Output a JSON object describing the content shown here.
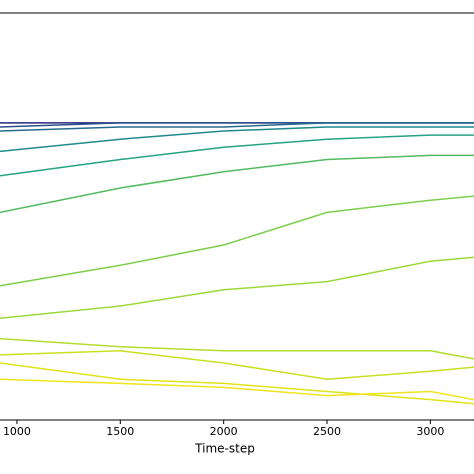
{
  "chart_data": {
    "type": "line",
    "x_label": "Time-step",
    "x": [
      918,
      1500,
      2000,
      2500,
      3000,
      3211
    ],
    "xlim": [
      918,
      3211
    ],
    "xticks": [
      1000,
      1500,
      2000,
      2500,
      3000
    ],
    "ylim": [
      0,
      1
    ],
    "series": [
      {
        "color": "#26247c",
        "values": [
          0.73,
          0.73,
          0.73,
          0.73,
          0.73,
          0.73
        ]
      },
      {
        "color": "#2c4f8c",
        "values": [
          0.72,
          0.73,
          0.73,
          0.73,
          0.73,
          0.73
        ]
      },
      {
        "color": "#266b8e",
        "values": [
          0.71,
          0.72,
          0.72,
          0.73,
          0.73,
          0.73
        ]
      },
      {
        "color": "#1f8a8c",
        "values": [
          0.66,
          0.69,
          0.71,
          0.72,
          0.72,
          0.72
        ]
      },
      {
        "color": "#25a384",
        "values": [
          0.6,
          0.64,
          0.67,
          0.69,
          0.7,
          0.7
        ]
      },
      {
        "color": "#52bb5f",
        "values": [
          0.51,
          0.57,
          0.61,
          0.64,
          0.65,
          0.65
        ]
      },
      {
        "color": "#7ccf4a",
        "values": [
          0.33,
          0.38,
          0.43,
          0.51,
          0.54,
          0.55
        ]
      },
      {
        "color": "#9cd93b",
        "values": [
          0.25,
          0.28,
          0.32,
          0.34,
          0.39,
          0.4
        ]
      },
      {
        "color": "#b2dd2d",
        "values": [
          0.2,
          0.18,
          0.17,
          0.17,
          0.17,
          0.15
        ]
      },
      {
        "color": "#c9e020",
        "values": [
          0.16,
          0.17,
          0.14,
          0.1,
          0.12,
          0.13
        ]
      },
      {
        "color": "#dfe318",
        "values": [
          0.14,
          0.1,
          0.09,
          0.07,
          0.05,
          0.04
        ]
      },
      {
        "color": "#f0e51c",
        "values": [
          0.1,
          0.09,
          0.08,
          0.06,
          0.07,
          0.05
        ]
      }
    ]
  }
}
